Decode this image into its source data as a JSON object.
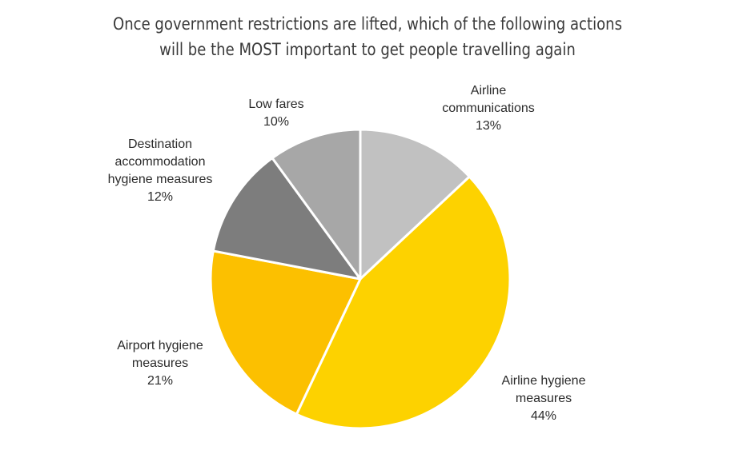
{
  "chart_data": {
    "type": "pie",
    "title": "Once government restrictions are lifted, which of the following actions",
    "subtitle": "will be the MOST important to get people travelling again",
    "slices": [
      {
        "lines": [
          "Airline",
          "communications"
        ],
        "value_label": "13%",
        "value": 13,
        "color": "#c1c1c1"
      },
      {
        "lines": [
          "Airline hygiene",
          "measures"
        ],
        "value_label": "44%",
        "value": 44,
        "color": "#fdd200"
      },
      {
        "lines": [
          "Airport hygiene",
          "measures"
        ],
        "value_label": "21%",
        "value": 21,
        "color": "#fcc000"
      },
      {
        "lines": [
          "Destination",
          "accommodation",
          "hygiene measures"
        ],
        "value_label": "12%",
        "value": 12,
        "color": "#7d7d7d"
      },
      {
        "lines": [
          "Low fares"
        ],
        "value_label": "10%",
        "value": 10,
        "color": "#a7a7a7"
      }
    ]
  }
}
